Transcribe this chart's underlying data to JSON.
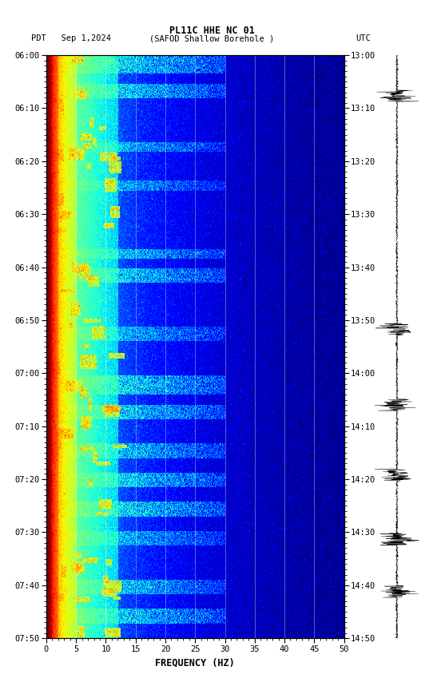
{
  "title_line1": "PL11C HHE NC 01",
  "title_line2_left": "PDT   Sep 1,2024",
  "title_line2_center": "(SAFOD Shallow Borehole )",
  "title_line2_right": "UTC",
  "xlabel": "FREQUENCY (HZ)",
  "ytick_pdt": [
    "06:00",
    "06:10",
    "06:20",
    "06:30",
    "06:40",
    "06:50",
    "07:00",
    "07:10",
    "07:20",
    "07:30",
    "07:40",
    "07:50"
  ],
  "ytick_utc": [
    "13:00",
    "13:10",
    "13:20",
    "13:30",
    "13:40",
    "13:50",
    "14:00",
    "14:10",
    "14:20",
    "14:30",
    "14:40",
    "14:50"
  ],
  "xticks": [
    0,
    5,
    10,
    15,
    20,
    25,
    30,
    35,
    40,
    45,
    50
  ],
  "vline_positions": [
    5,
    10,
    15,
    20,
    25,
    30,
    35,
    40,
    45
  ],
  "background_color": "#ffffff",
  "seed": 12345
}
